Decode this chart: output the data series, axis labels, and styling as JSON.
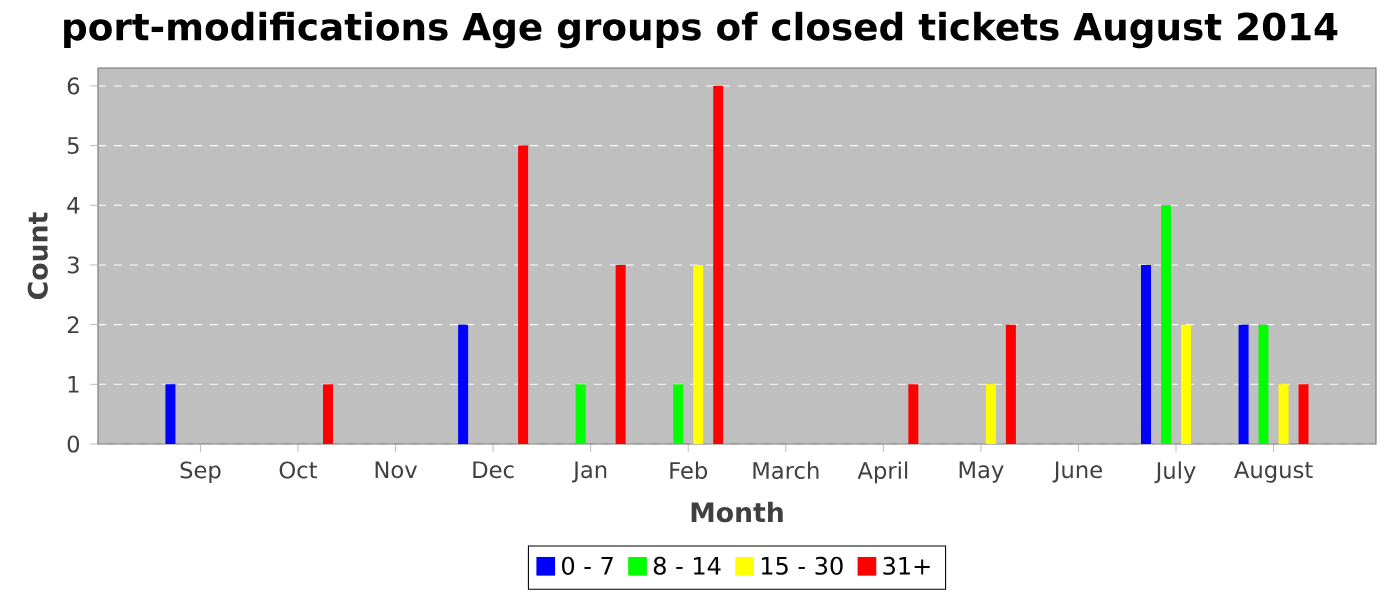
{
  "chart_data": {
    "type": "bar",
    "title": "port-modifications Age groups of closed tickets August 2014",
    "xlabel": "Month",
    "ylabel": "Count",
    "categories": [
      "Sep",
      "Oct",
      "Nov",
      "Dec",
      "Jan",
      "Feb",
      "March",
      "April",
      "May",
      "June",
      "July",
      "August"
    ],
    "series": [
      {
        "name": "0 - 7",
        "color": "#0000ff",
        "values": [
          1,
          0,
          0,
          2,
          0,
          0,
          0,
          0,
          0,
          0,
          3,
          2
        ]
      },
      {
        "name": "8 - 14",
        "color": "#00ff00",
        "values": [
          0,
          0,
          0,
          0,
          1,
          1,
          0,
          0,
          0,
          0,
          4,
          2
        ]
      },
      {
        "name": "15 - 30",
        "color": "#ffff00",
        "values": [
          0,
          0,
          0,
          0,
          0,
          3,
          0,
          0,
          1,
          0,
          2,
          1
        ]
      },
      {
        "name": "31+",
        "color": "#ff0000",
        "values": [
          0,
          1,
          0,
          5,
          3,
          6,
          0,
          1,
          2,
          0,
          0,
          1
        ]
      }
    ],
    "ylim": [
      0,
      6.3
    ],
    "yticks": [
      0,
      1,
      2,
      3,
      4,
      5,
      6
    ],
    "grid": "y",
    "legend": "bottom"
  }
}
